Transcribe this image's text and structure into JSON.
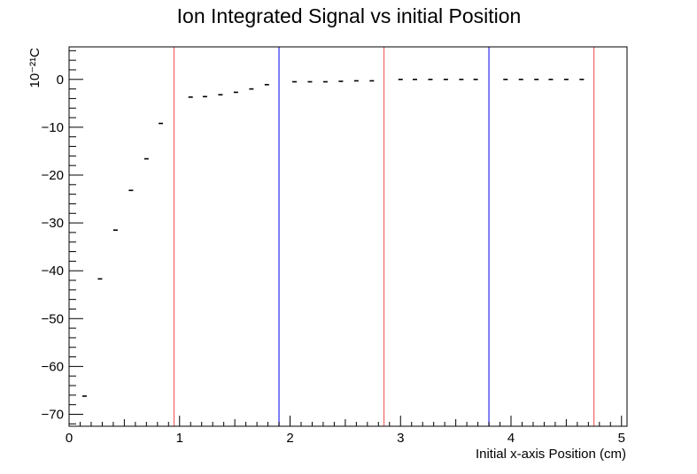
{
  "chart_data": {
    "type": "scatter",
    "title": "Ion Integrated Signal vs initial Position",
    "xlabel": "Initial x-axis Position (cm)",
    "ylabel": "10⁻²¹C",
    "xlim": [
      0,
      5.05
    ],
    "ylim": [
      -72.5,
      6.8
    ],
    "x_ticks": [
      0,
      1,
      2,
      3,
      4,
      5
    ],
    "x_tick_labels": [
      "0",
      "1",
      "2",
      "3",
      "4",
      "5"
    ],
    "y_ticks": [
      0,
      -10,
      -20,
      -30,
      -40,
      -50,
      -60,
      -70
    ],
    "y_tick_labels": [
      "0",
      "−10",
      "−20",
      "−30",
      "−40",
      "−50",
      "−60",
      "−70"
    ],
    "grid": false,
    "series": [
      {
        "marker": "dash",
        "color": "#000000",
        "x": [
          0.14,
          0.28,
          0.42,
          0.56,
          0.7,
          0.83,
          1.1,
          1.23,
          1.37,
          1.51,
          1.65,
          1.79,
          2.04,
          2.18,
          2.32,
          2.46,
          2.6,
          2.74,
          3.0,
          3.13,
          3.27,
          3.41,
          3.55,
          3.68,
          3.95,
          4.09,
          4.23,
          4.36,
          4.5,
          4.64
        ],
        "y": [
          -66.2,
          -41.7,
          -31.5,
          -23.2,
          -16.6,
          -9.2,
          -3.7,
          -3.6,
          -3.2,
          -2.7,
          -2.0,
          -1.1,
          -0.5,
          -0.5,
          -0.5,
          -0.4,
          -0.3,
          -0.3,
          0.0,
          0.0,
          0.0,
          0.0,
          0.0,
          0.0,
          0.0,
          0.0,
          0.0,
          0.0,
          0.0,
          0.0
        ]
      }
    ],
    "vertical_lines": [
      {
        "x": 0.95,
        "color": "#f26b6b"
      },
      {
        "x": 1.9,
        "color": "#3c3cf0"
      },
      {
        "x": 2.85,
        "color": "#f26b6b"
      },
      {
        "x": 3.8,
        "color": "#3c3cf0"
      },
      {
        "x": 4.75,
        "color": "#f26b6b"
      }
    ]
  }
}
